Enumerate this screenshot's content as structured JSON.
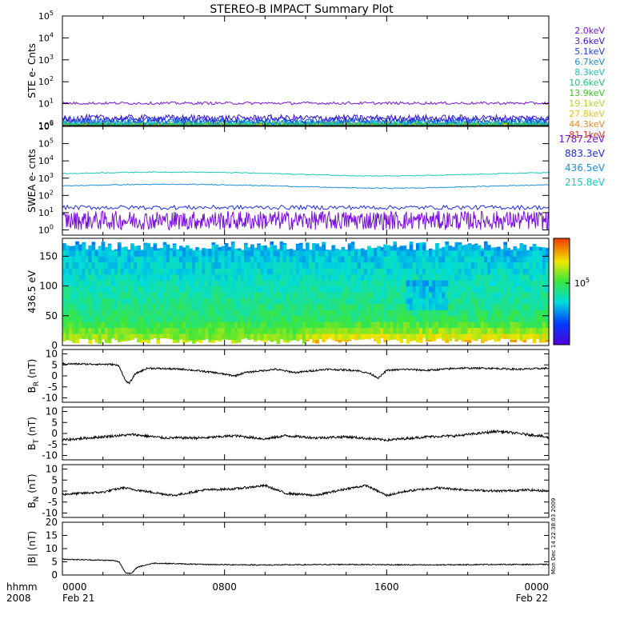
{
  "title": "STEREO-B IMPACT Summary Plot",
  "footer": {
    "row_label": "hhmm",
    "year": "2008",
    "time_ticks": [
      "0000",
      "0800",
      "1600",
      "0000"
    ],
    "date_start": "Feb 21",
    "date_end": "Feb 22"
  },
  "timestamp": "Mon Dec 14 22:38:03 2009",
  "chart_data": [
    {
      "type": "line",
      "panel": "ste",
      "ylabel": "STE e- Cnts",
      "yscale": "log",
      "ylim": [
        1,
        100000
      ],
      "x_hours": [
        0,
        24
      ],
      "tick_labels": [
        "10^0",
        "10^1",
        "10^2",
        "10^3",
        "10^4",
        "10^5"
      ],
      "series": [
        {
          "name": "2.0keV",
          "color": "#7a10d8",
          "level": 10.5
        },
        {
          "name": "3.6keV",
          "color": "#3a16c8",
          "level": 2.2
        },
        {
          "name": "5.1keV",
          "color": "#1c3ce6",
          "level": 1.8
        },
        {
          "name": "6.7keV",
          "color": "#1a8fe0",
          "level": 1.5
        },
        {
          "name": "8.3keV",
          "color": "#14c4c4",
          "level": 1.3
        },
        {
          "name": "10.6keV",
          "color": "#14c878",
          "level": 1.15
        },
        {
          "name": "13.9keV",
          "color": "#34c81e",
          "level": 1.1
        },
        {
          "name": "19.1keV",
          "color": "#b8d21a",
          "level": 1.05
        },
        {
          "name": "27.8keV",
          "color": "#eec21a",
          "level": 1.02
        },
        {
          "name": "44.3keV",
          "color": "#ee8a18",
          "level": 1.01
        },
        {
          "name": "81.1keV",
          "color": "#d83414",
          "level": 1.0
        }
      ]
    },
    {
      "type": "line",
      "panel": "swea",
      "ylabel": "SWEA e- cnts",
      "yscale": "log",
      "ylim": [
        0.5,
        1000000
      ],
      "x_hours": [
        0,
        24
      ],
      "tick_labels": [
        "10^0",
        "10^1",
        "10^2",
        "10^3",
        "10^4",
        "10^5",
        "10^6"
      ],
      "series": [
        {
          "name": "1787.2eV",
          "color": "#7a10d8",
          "level": 4
        },
        {
          "name": "883.3eV",
          "color": "#1c2ce6",
          "level": 20
        },
        {
          "name": "436.5eV",
          "color": "#1a8fe0",
          "level": 350
        },
        {
          "name": "215.8eV",
          "color": "#18c8b8",
          "level": 1800
        }
      ]
    },
    {
      "type": "heatmap",
      "panel": "pad",
      "ylabel": "436.5 eV",
      "ylim": [
        0,
        180
      ],
      "ticks": [
        0,
        50,
        100,
        150
      ],
      "x_hours": [
        0,
        24
      ],
      "colorbar_tick": "10^5"
    },
    {
      "type": "line",
      "panel": "br",
      "ylabel": "B",
      "ylabel_sub": "R",
      "ylabel_unit": "(nT)",
      "ylim": [
        -12,
        12
      ],
      "ticks": [
        10,
        5,
        0,
        -5,
        -10
      ],
      "x_hours": [
        0,
        24
      ],
      "knots": [
        [
          0,
          5.5
        ],
        [
          2.5,
          5.2
        ],
        [
          2.8,
          4.5
        ],
        [
          3.1,
          -2
        ],
        [
          3.3,
          -3.5
        ],
        [
          3.6,
          1
        ],
        [
          4.2,
          3.5
        ],
        [
          6,
          3
        ],
        [
          7.5,
          1.5
        ],
        [
          8.5,
          0
        ],
        [
          9,
          1.5
        ],
        [
          10.5,
          3
        ],
        [
          11.5,
          1.5
        ],
        [
          13,
          3
        ],
        [
          14.5,
          2.5
        ],
        [
          15.2,
          1
        ],
        [
          15.6,
          -1
        ],
        [
          16,
          2.5
        ],
        [
          17,
          3
        ],
        [
          18,
          2.5
        ],
        [
          19.5,
          3.5
        ],
        [
          21,
          3.5
        ],
        [
          22.5,
          3
        ],
        [
          24,
          3.5
        ]
      ],
      "noise": 0.8
    },
    {
      "type": "line",
      "panel": "bt",
      "ylabel": "B",
      "ylabel_sub": "T",
      "ylabel_unit": "(nT)",
      "ylim": [
        -12,
        12
      ],
      "ticks": [
        10,
        5,
        0,
        -5,
        -10
      ],
      "x_hours": [
        0,
        24
      ],
      "knots": [
        [
          0,
          -3
        ],
        [
          2,
          -1.5
        ],
        [
          3.5,
          -0.5
        ],
        [
          5,
          -2
        ],
        [
          7,
          -2
        ],
        [
          8.5,
          -1
        ],
        [
          10,
          -2.5
        ],
        [
          11,
          -1
        ],
        [
          12.5,
          -2
        ],
        [
          14,
          -1.5
        ],
        [
          16,
          -3
        ],
        [
          18,
          -1.5
        ],
        [
          19.5,
          -1
        ],
        [
          20.5,
          0
        ],
        [
          21.5,
          1
        ],
        [
          22.5,
          0
        ],
        [
          23.5,
          -1
        ],
        [
          24,
          -2
        ]
      ],
      "noise": 1.1
    },
    {
      "type": "line",
      "panel": "bn",
      "ylabel": "B",
      "ylabel_sub": "N",
      "ylabel_unit": "(nT)",
      "ylim": [
        -12,
        12
      ],
      "ticks": [
        10,
        5,
        0,
        -5,
        -10
      ],
      "x_hours": [
        0,
        24
      ],
      "knots": [
        [
          0,
          -1.5
        ],
        [
          2,
          -0.5
        ],
        [
          3,
          1.5
        ],
        [
          4,
          0
        ],
        [
          5.5,
          -2
        ],
        [
          7,
          0.5
        ],
        [
          8.5,
          1
        ],
        [
          10,
          2.5
        ],
        [
          11,
          -1
        ],
        [
          12.5,
          -2
        ],
        [
          14,
          1
        ],
        [
          15,
          2.5
        ],
        [
          16,
          -2
        ],
        [
          17,
          0
        ],
        [
          18.5,
          1.5
        ],
        [
          20,
          0.5
        ],
        [
          21.5,
          0
        ],
        [
          23,
          0.5
        ],
        [
          24,
          0
        ]
      ],
      "noise": 1.0
    },
    {
      "type": "line",
      "panel": "bmag",
      "ylabel": "|B| (nT)",
      "ylim": [
        0,
        20
      ],
      "ticks": [
        20,
        15,
        10,
        5,
        0
      ],
      "x_hours": [
        0,
        24
      ],
      "knots": [
        [
          0,
          6
        ],
        [
          2.5,
          5.5
        ],
        [
          2.8,
          5
        ],
        [
          3.1,
          1
        ],
        [
          3.4,
          0.5
        ],
        [
          3.7,
          3
        ],
        [
          4.5,
          4.5
        ],
        [
          7,
          4
        ],
        [
          10,
          3.8
        ],
        [
          14,
          4
        ],
        [
          18,
          3.8
        ],
        [
          21,
          4
        ],
        [
          24,
          4
        ]
      ],
      "noise": 0.4
    }
  ]
}
